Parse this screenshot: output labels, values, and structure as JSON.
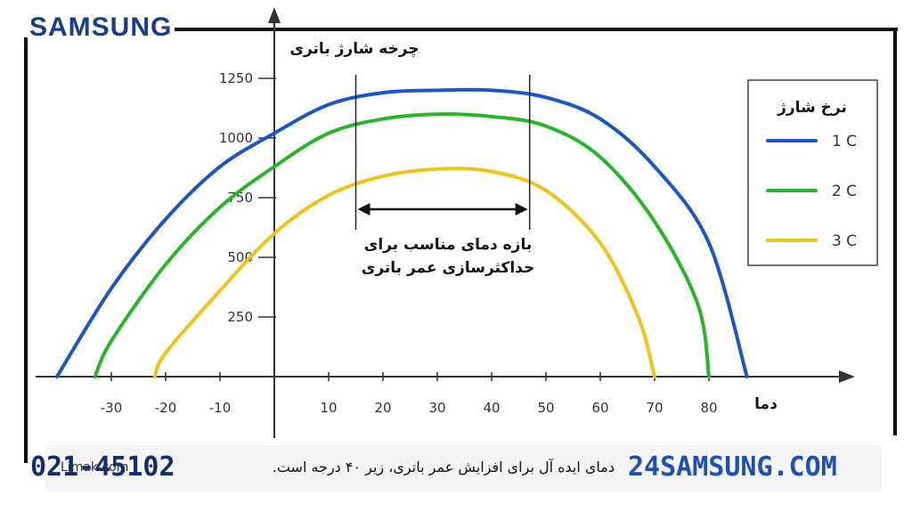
{
  "brand": "SAMSUNG",
  "footer": {
    "caption": "دمای ایده آل برای افزایش عمر باتری، زیر ۴۰ درجه است.",
    "source": "Limak.com",
    "phone": "021-45102",
    "site": "24SAMSUNG.COM"
  },
  "chart_data": {
    "type": "line",
    "title": "",
    "ylabel": "چرخه شارژ باتری",
    "xlabel": "دما",
    "xlim": [
      -38,
      90
    ],
    "ylim": [
      0,
      1350
    ],
    "x_ticks": [
      -30,
      -20,
      -10,
      10,
      20,
      30,
      40,
      50,
      60,
      70,
      80
    ],
    "y_ticks": [
      250,
      500,
      750,
      1000,
      1250
    ],
    "legend": {
      "title": "نرخ شارژ",
      "position": "right"
    },
    "series": [
      {
        "name": "1 C",
        "color": "#1a56c4",
        "points": [
          [
            -40,
            0
          ],
          [
            -30,
            370
          ],
          [
            -20,
            660
          ],
          [
            -10,
            880
          ],
          [
            0,
            1020
          ],
          [
            10,
            1140
          ],
          [
            20,
            1190
          ],
          [
            30,
            1200
          ],
          [
            40,
            1200
          ],
          [
            50,
            1170
          ],
          [
            60,
            1080
          ],
          [
            70,
            880
          ],
          [
            80,
            560
          ],
          [
            87,
            0
          ]
        ]
      },
      {
        "name": "2 C",
        "color": "#27b52a",
        "points": [
          [
            -33,
            0
          ],
          [
            -30,
            150
          ],
          [
            -20,
            470
          ],
          [
            -10,
            710
          ],
          [
            0,
            880
          ],
          [
            10,
            1020
          ],
          [
            20,
            1080
          ],
          [
            30,
            1100
          ],
          [
            40,
            1090
          ],
          [
            50,
            1050
          ],
          [
            60,
            920
          ],
          [
            70,
            650
          ],
          [
            78,
            300
          ],
          [
            80,
            0
          ]
        ]
      },
      {
        "name": "3 C",
        "color": "#f0c21a",
        "points": [
          [
            -22,
            0
          ],
          [
            -20,
            100
          ],
          [
            -10,
            360
          ],
          [
            0,
            600
          ],
          [
            10,
            760
          ],
          [
            20,
            840
          ],
          [
            30,
            870
          ],
          [
            40,
            860
          ],
          [
            50,
            780
          ],
          [
            60,
            560
          ],
          [
            67,
            250
          ],
          [
            70,
            0
          ]
        ]
      }
    ],
    "annotation": {
      "lines": [
        "بازه دمای مناسب برای",
        "حداکثرسازی عمر باتری"
      ],
      "range": [
        15,
        47
      ]
    }
  }
}
